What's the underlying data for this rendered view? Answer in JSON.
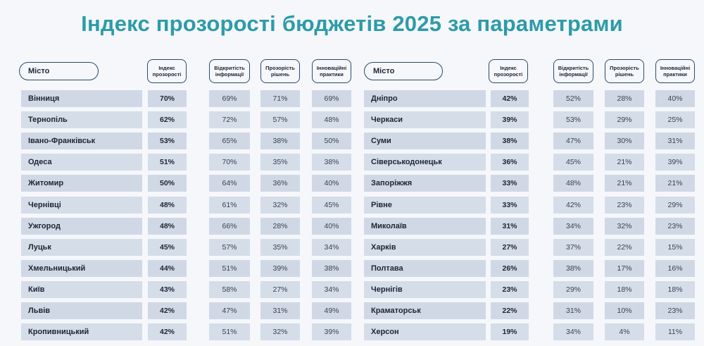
{
  "title": "Індекс прозорості бюджетів 2025 за параметрами",
  "colors": {
    "title": "#2d9ba8",
    "cell_gray": "#d0d8e6",
    "cell_blue": "#d5dde9",
    "border": "#2b4a6b"
  },
  "headers": {
    "city": "Місто",
    "index": "Індекс прозорості",
    "openness": "Відкритість інформації",
    "decisions": "Прозорість рішень",
    "innovative": "Інноваційні практики"
  },
  "chart_data": {
    "type": "table",
    "title": "Індекс прозорості бюджетів 2025 за параметрами",
    "columns": [
      "Місто",
      "Індекс прозорості",
      "Відкритість інформації",
      "Прозорість рішень",
      "Інноваційні практики"
    ],
    "left_rows": [
      {
        "city": "Вінниця",
        "index": "70%",
        "openness": "69%",
        "decisions": "71%",
        "innovative": "69%"
      },
      {
        "city": "Тернопіль",
        "index": "62%",
        "openness": "72%",
        "decisions": "57%",
        "innovative": "48%"
      },
      {
        "city": "Івано-Франківськ",
        "index": "53%",
        "openness": "65%",
        "decisions": "38%",
        "innovative": "50%"
      },
      {
        "city": "Одеса",
        "index": "51%",
        "openness": "70%",
        "decisions": "35%",
        "innovative": "38%"
      },
      {
        "city": "Житомир",
        "index": "50%",
        "openness": "64%",
        "decisions": "36%",
        "innovative": "40%"
      },
      {
        "city": "Чернівці",
        "index": "48%",
        "openness": "61%",
        "decisions": "32%",
        "innovative": "45%"
      },
      {
        "city": "Ужгород",
        "index": "48%",
        "openness": "66%",
        "decisions": "28%",
        "innovative": "40%"
      },
      {
        "city": "Луцьк",
        "index": "45%",
        "openness": "57%",
        "decisions": "35%",
        "innovative": "34%"
      },
      {
        "city": "Хмельницький",
        "index": "44%",
        "openness": "51%",
        "decisions": "39%",
        "innovative": "38%"
      },
      {
        "city": "Київ",
        "index": "43%",
        "openness": "58%",
        "decisions": "27%",
        "innovative": "34%"
      },
      {
        "city": "Львів",
        "index": "42%",
        "openness": "47%",
        "decisions": "31%",
        "innovative": "49%"
      },
      {
        "city": "Кропивницький",
        "index": "42%",
        "openness": "51%",
        "decisions": "32%",
        "innovative": "39%"
      }
    ],
    "right_rows": [
      {
        "city": "Дніпро",
        "index": "42%",
        "openness": "52%",
        "decisions": "28%",
        "innovative": "40%"
      },
      {
        "city": "Черкаси",
        "index": "39%",
        "openness": "53%",
        "decisions": "29%",
        "innovative": "25%"
      },
      {
        "city": "Суми",
        "index": "38%",
        "openness": "47%",
        "decisions": "30%",
        "innovative": "31%"
      },
      {
        "city": "Сіверськодонецьк",
        "index": "36%",
        "openness": "45%",
        "decisions": "21%",
        "innovative": "39%"
      },
      {
        "city": "Запоріжжя",
        "index": "33%",
        "openness": "48%",
        "decisions": "21%",
        "innovative": "21%"
      },
      {
        "city": "Рівне",
        "index": "33%",
        "openness": "42%",
        "decisions": "23%",
        "innovative": "29%"
      },
      {
        "city": "Миколаїв",
        "index": "31%",
        "openness": "34%",
        "decisions": "32%",
        "innovative": "23%"
      },
      {
        "city": "Харків",
        "index": "27%",
        "openness": "37%",
        "decisions": "22%",
        "innovative": "15%"
      },
      {
        "city": "Полтава",
        "index": "26%",
        "openness": "38%",
        "decisions": "17%",
        "innovative": "16%"
      },
      {
        "city": "Чернігів",
        "index": "23%",
        "openness": "29%",
        "decisions": "18%",
        "innovative": "18%"
      },
      {
        "city": "Краматорськ",
        "index": "22%",
        "openness": "31%",
        "decisions": "10%",
        "innovative": "23%"
      },
      {
        "city": "Херсон",
        "index": "19%",
        "openness": "34%",
        "decisions": "4%",
        "innovative": "11%"
      }
    ]
  }
}
